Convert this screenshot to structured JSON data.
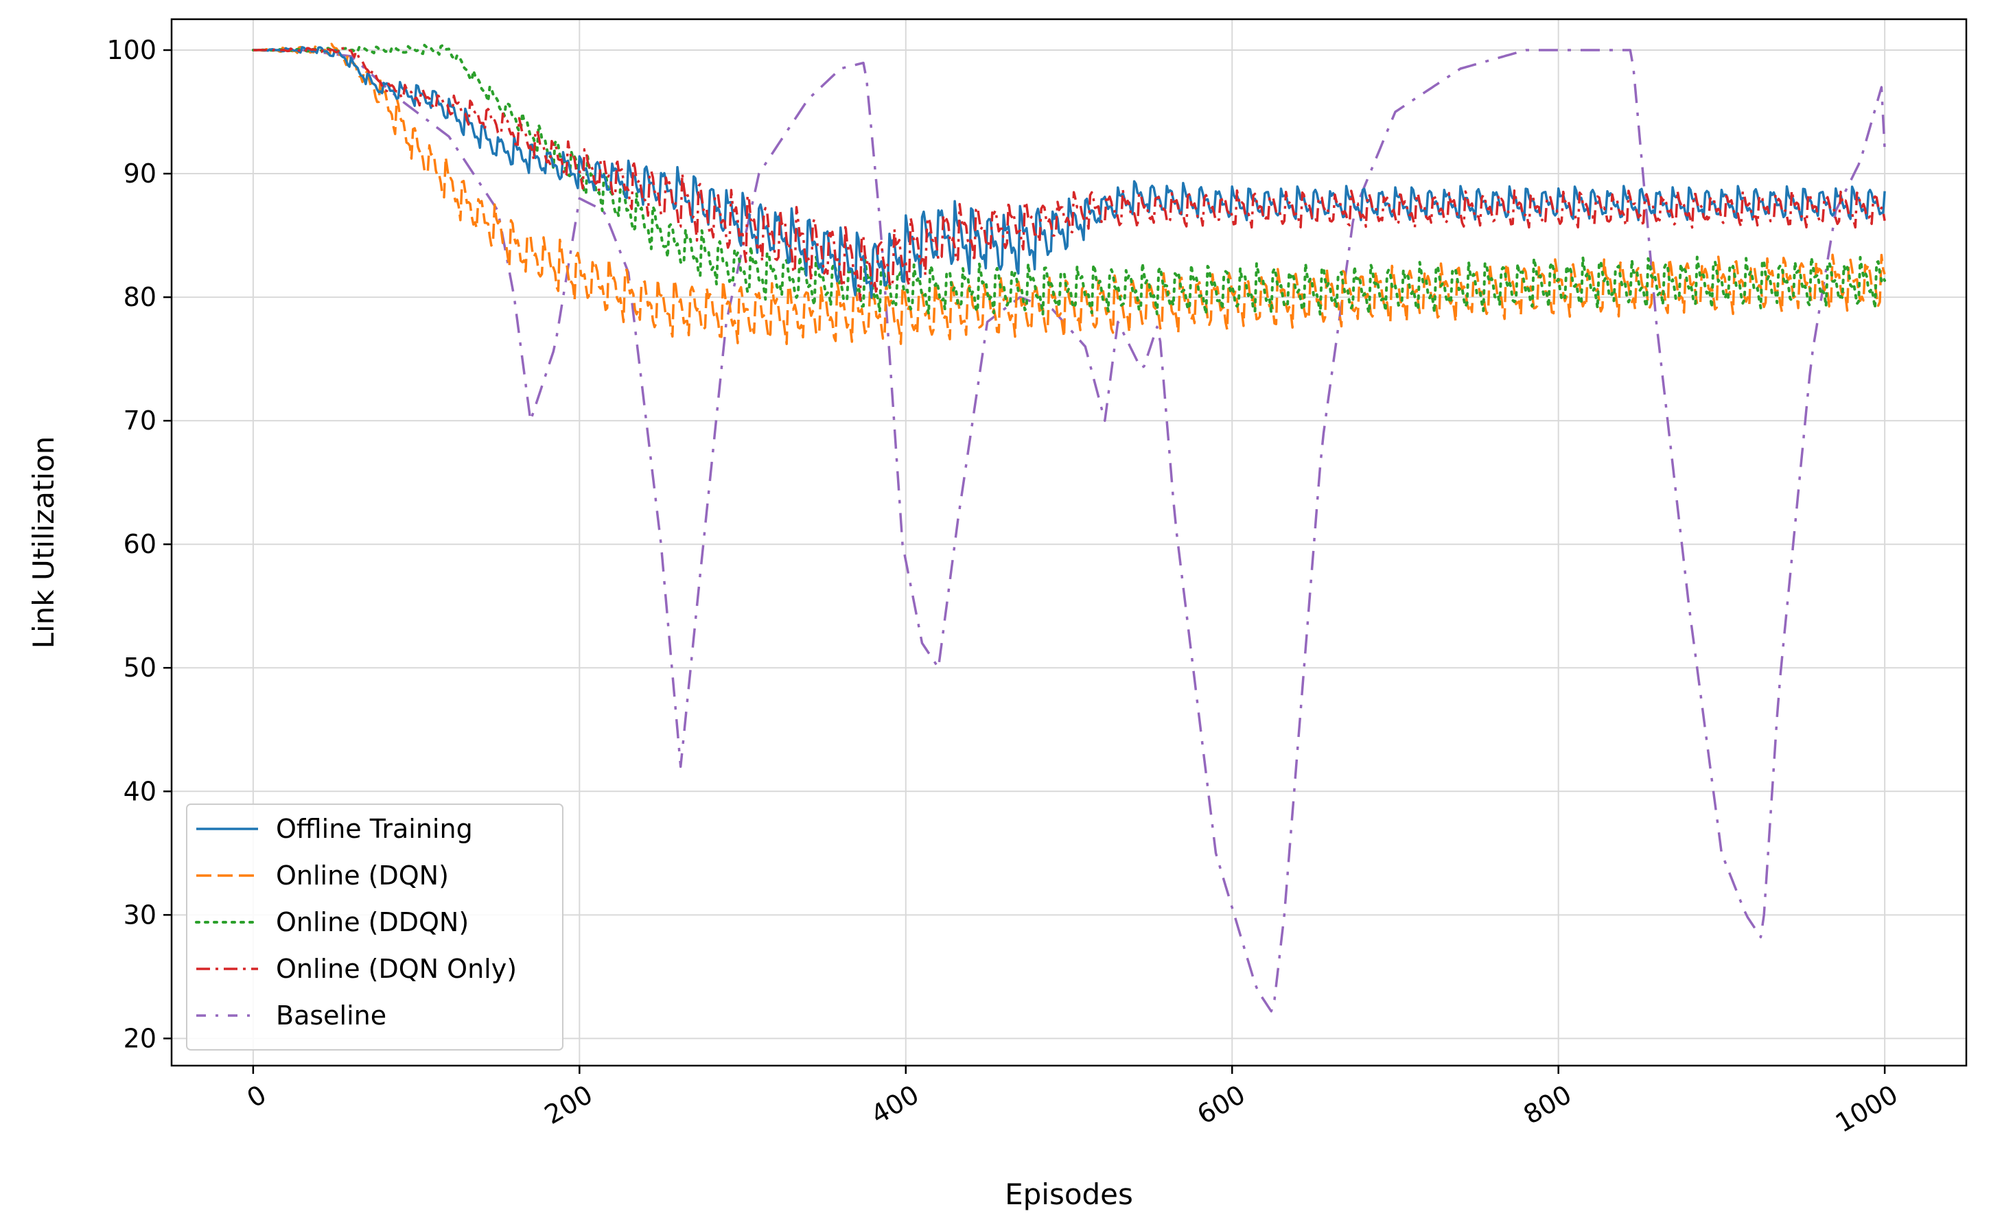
{
  "chart_data": {
    "type": "line",
    "title": "",
    "xlabel": "Episodes",
    "ylabel": "Link Utilization",
    "xlim": [
      -50,
      1050
    ],
    "ylim": [
      17.8,
      102.5
    ],
    "xticks": [
      0,
      200,
      400,
      600,
      800,
      1000
    ],
    "yticks": [
      20,
      30,
      40,
      50,
      60,
      70,
      80,
      90,
      100
    ],
    "xtick_labels": [
      "0",
      "200",
      "400",
      "600",
      "800",
      "1000"
    ],
    "ytick_labels": [
      "20",
      "30",
      "40",
      "50",
      "60",
      "70",
      "80",
      "90",
      "100"
    ],
    "xtick_rotation_deg": 30,
    "grid": true,
    "legend_position": "lower-left",
    "series": [
      {
        "name": "Offline Training",
        "color": "#1f77b4",
        "style": "solid",
        "trend": [
          [
            0,
            100
          ],
          [
            40,
            100
          ],
          [
            55,
            99.5
          ],
          [
            75,
            97
          ],
          [
            110,
            96
          ],
          [
            150,
            92
          ],
          [
            200,
            90
          ],
          [
            260,
            88.5
          ],
          [
            300,
            86
          ],
          [
            340,
            84
          ],
          [
            380,
            82
          ],
          [
            420,
            85
          ],
          [
            460,
            84
          ],
          [
            490,
            85
          ],
          [
            520,
            87
          ],
          [
            540,
            88
          ],
          [
            600,
            87.5
          ],
          [
            800,
            87.5
          ],
          [
            1000,
            87.5
          ]
        ],
        "oscillation": [
          [
            0,
            0
          ],
          [
            60,
            0.4
          ],
          [
            120,
            1
          ],
          [
            200,
            1.2
          ],
          [
            300,
            2
          ],
          [
            400,
            2.5
          ],
          [
            480,
            2.5
          ],
          [
            520,
            1.2
          ],
          [
            1000,
            1.2
          ]
        ],
        "period": 10,
        "phase": 0
      },
      {
        "name": "Online (DQN)",
        "color": "#ff7f0e",
        "style": "dashed",
        "trend": [
          [
            0,
            100
          ],
          [
            50,
            100
          ],
          [
            60,
            99
          ],
          [
            80,
            96
          ],
          [
            100,
            92
          ],
          [
            130,
            87.5
          ],
          [
            160,
            84
          ],
          [
            200,
            81.5
          ],
          [
            250,
            79
          ],
          [
            300,
            78.5
          ],
          [
            350,
            78.5
          ],
          [
            400,
            78.5
          ],
          [
            450,
            79
          ],
          [
            500,
            79
          ],
          [
            600,
            79.5
          ],
          [
            700,
            80
          ],
          [
            800,
            80.5
          ],
          [
            1000,
            81
          ]
        ],
        "oscillation": [
          [
            0,
            0
          ],
          [
            60,
            0.5
          ],
          [
            90,
            1.5
          ],
          [
            200,
            2
          ],
          [
            300,
            2.2
          ],
          [
            1000,
            2
          ]
        ],
        "period": 10,
        "phase": 2
      },
      {
        "name": "Online (DDQN)",
        "color": "#2ca02c",
        "style": "dotted",
        "trend": [
          [
            0,
            100
          ],
          [
            120,
            100
          ],
          [
            140,
            97
          ],
          [
            180,
            92
          ],
          [
            220,
            88
          ],
          [
            260,
            84
          ],
          [
            300,
            82
          ],
          [
            350,
            81
          ],
          [
            400,
            80.5
          ],
          [
            450,
            80.5
          ],
          [
            500,
            80.5
          ],
          [
            600,
            80.5
          ],
          [
            700,
            80.5
          ],
          [
            800,
            81
          ],
          [
            1000,
            81
          ]
        ],
        "oscillation": [
          [
            0,
            0
          ],
          [
            130,
            0.4
          ],
          [
            200,
            1.5
          ],
          [
            300,
            1.8
          ],
          [
            1000,
            1.8
          ]
        ],
        "period": 10,
        "phase": 5
      },
      {
        "name": "Online (DQN Only)",
        "color": "#d62728",
        "style": "dashdot",
        "trend": [
          [
            0,
            100
          ],
          [
            60,
            100
          ],
          [
            80,
            97
          ],
          [
            120,
            95.5
          ],
          [
            150,
            94
          ],
          [
            190,
            91
          ],
          [
            230,
            89
          ],
          [
            270,
            87
          ],
          [
            300,
            85.5
          ],
          [
            350,
            83.5
          ],
          [
            380,
            82
          ],
          [
            420,
            84.5
          ],
          [
            460,
            85.5
          ],
          [
            490,
            86
          ],
          [
            510,
            87
          ],
          [
            550,
            87
          ],
          [
            1000,
            87
          ]
        ],
        "oscillation": [
          [
            0,
            0
          ],
          [
            70,
            0.3
          ],
          [
            120,
            0.8
          ],
          [
            200,
            1.5
          ],
          [
            300,
            2.5
          ],
          [
            400,
            2.5
          ],
          [
            500,
            1.5
          ],
          [
            550,
            1.3
          ],
          [
            1000,
            1.3
          ]
        ],
        "period": 10,
        "phase": 7
      },
      {
        "name": "Baseline",
        "color": "#9467bd",
        "style": "dashdot",
        "points": [
          [
            0,
            100
          ],
          [
            30,
            100
          ],
          [
            60,
            99.5
          ],
          [
            90,
            96
          ],
          [
            120,
            93
          ],
          [
            150,
            87
          ],
          [
            160,
            80
          ],
          [
            170,
            70
          ],
          [
            185,
            76
          ],
          [
            200,
            88
          ],
          [
            215,
            87
          ],
          [
            230,
            82
          ],
          [
            250,
            60
          ],
          [
            262,
            42
          ],
          [
            272,
            55
          ],
          [
            290,
            78
          ],
          [
            310,
            90
          ],
          [
            340,
            96
          ],
          [
            360,
            98.5
          ],
          [
            375,
            99
          ],
          [
            385,
            85
          ],
          [
            398,
            60
          ],
          [
            410,
            52
          ],
          [
            420,
            50
          ],
          [
            432,
            62
          ],
          [
            450,
            78
          ],
          [
            470,
            80
          ],
          [
            490,
            79
          ],
          [
            510,
            76
          ],
          [
            522,
            70
          ],
          [
            530,
            78
          ],
          [
            545,
            74
          ],
          [
            555,
            78
          ],
          [
            565,
            62
          ],
          [
            590,
            35
          ],
          [
            615,
            24
          ],
          [
            625,
            22
          ],
          [
            632,
            30
          ],
          [
            655,
            68
          ],
          [
            675,
            87
          ],
          [
            700,
            95
          ],
          [
            740,
            98.5
          ],
          [
            780,
            100
          ],
          [
            800,
            100
          ],
          [
            845,
            100
          ],
          [
            860,
            78
          ],
          [
            880,
            55
          ],
          [
            900,
            35
          ],
          [
            915,
            30
          ],
          [
            925,
            28
          ],
          [
            935,
            48
          ],
          [
            955,
            75
          ],
          [
            970,
            87
          ],
          [
            985,
            91
          ],
          [
            998,
            97
          ],
          [
            1000,
            92
          ]
        ]
      }
    ]
  }
}
